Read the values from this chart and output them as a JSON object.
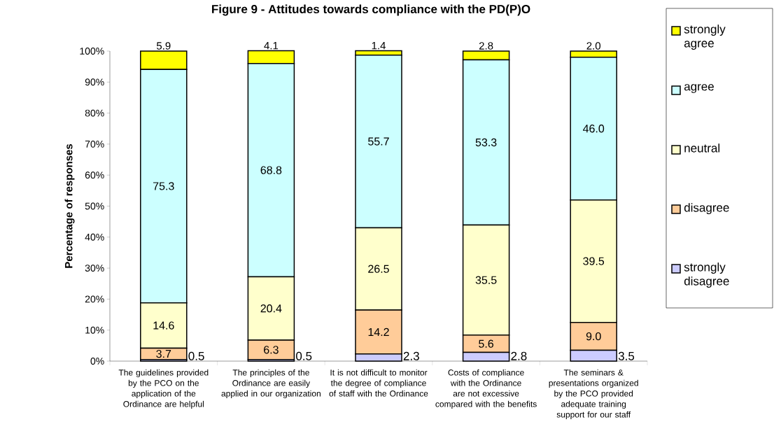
{
  "chart_data": {
    "type": "bar",
    "title": "Figure 9 - Attitudes towards compliance with the PD(P)O",
    "ylabel": "Percentage of responses",
    "categories": [
      "The guidelines provided by the PCO on the application of the Ordinance are helpful",
      "The principles of the Ordinance are easily applied in our organization",
      "It is not difficult to monitor the degree of compliance of staff with the Ordinance",
      "Costs of compliance with the Ordinance are not excessive compared with the benefits",
      "The seminars & presentations organized by the PCO provided adequate training support for our staff"
    ],
    "series": [
      {
        "name": "strongly disagree",
        "color": "#ccccff",
        "values": [
          0.5,
          0.5,
          2.3,
          2.8,
          3.5
        ],
        "value_labels": [
          "0.5",
          "0.5",
          "2.3",
          "2.8",
          "3.5"
        ]
      },
      {
        "name": "disagree",
        "color": "#ffcc99",
        "values": [
          3.7,
          6.3,
          14.2,
          5.6,
          9.0
        ],
        "value_labels": [
          "3.7",
          "6.3",
          "14.2",
          "5.6",
          "9.0"
        ]
      },
      {
        "name": "neutral",
        "color": "#ffffcc",
        "values": [
          14.6,
          20.4,
          26.5,
          35.5,
          39.5
        ],
        "value_labels": [
          "14.6",
          "20.4",
          "26.5",
          "35.5",
          "39.5"
        ]
      },
      {
        "name": "agree",
        "color": "#ccffff",
        "values": [
          75.3,
          68.8,
          55.7,
          53.3,
          46.0
        ],
        "value_labels": [
          "75.3",
          "68.8",
          "55.7",
          "53.3",
          "46.0"
        ]
      },
      {
        "name": "strongly agree",
        "color": "#ffff00",
        "values": [
          5.9,
          4.1,
          1.4,
          2.8,
          2.0
        ],
        "value_labels": [
          "5.9",
          "4.1",
          "1.4",
          "2.8",
          "2.0"
        ]
      }
    ],
    "stacked": true,
    "legend": "right",
    "grid": false,
    "ylim": [
      0,
      100
    ],
    "yticks": [
      {
        "value": 0,
        "label": "0%"
      },
      {
        "value": 10,
        "label": "10%"
      },
      {
        "value": 20,
        "label": "20%"
      },
      {
        "value": 30,
        "label": "30%"
      },
      {
        "value": 40,
        "label": "40%"
      },
      {
        "value": 50,
        "label": "50%"
      },
      {
        "value": 60,
        "label": "60%"
      },
      {
        "value": 70,
        "label": "70%"
      },
      {
        "value": 80,
        "label": "80%"
      },
      {
        "value": 90,
        "label": "90%"
      },
      {
        "value": 100,
        "label": "100%"
      }
    ]
  }
}
